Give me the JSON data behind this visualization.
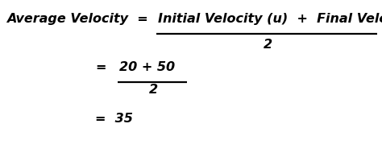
{
  "bg_color": "#ffffff",
  "text_color": "#000000",
  "left_label": "Average Velocity  =  ",
  "numerator": "Initial Velocity (u)  +  Final Velocity (v)",
  "denominator1": "2",
  "eq2": "=",
  "numerator2": "20 + 50",
  "denominator2": "2",
  "result_line": "=  35",
  "fontsize": 11.5
}
